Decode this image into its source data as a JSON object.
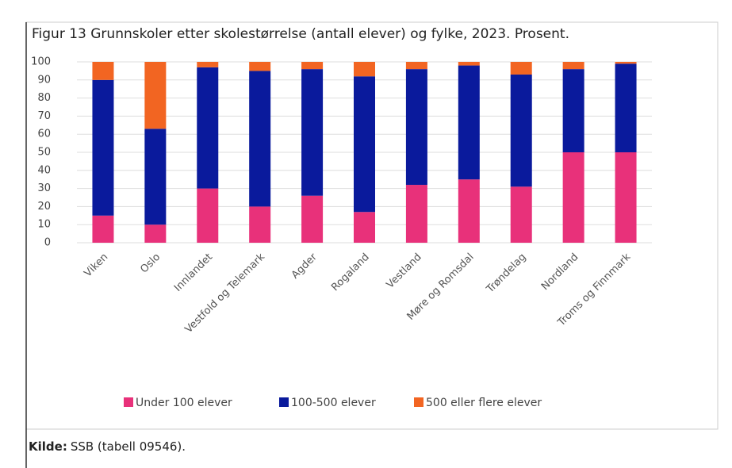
{
  "chart_data": {
    "type": "stacked_bar",
    "title": "Figur 13 Grunnskoler etter skolestørrelse (antall elever) og fylke, 2023. Prosent.",
    "categories": [
      "Viken",
      "Oslo",
      "Innlandet",
      "Vestfold og Telemark",
      "Agder",
      "Rogaland",
      "Vestland",
      "Møre og Romsdal",
      "Trøndelag",
      "Nordland",
      "Troms og Finnmark"
    ],
    "series": [
      {
        "name": "Under 100 elever",
        "color": "#e8317a",
        "values": [
          15,
          10,
          30,
          20,
          26,
          17,
          32,
          35,
          31,
          50,
          50
        ]
      },
      {
        "name": "100-500 elever",
        "color": "#0a1a9c",
        "values": [
          75,
          53,
          67,
          75,
          70,
          75,
          64,
          63,
          62,
          46,
          49
        ]
      },
      {
        "name": "500 eller flere elever",
        "color": "#f26522",
        "values": [
          10,
          37,
          3,
          5,
          4,
          8,
          4,
          2,
          7,
          4,
          1
        ]
      }
    ],
    "ylim": [
      0,
      100
    ],
    "yticks": [
      0,
      10,
      20,
      30,
      40,
      50,
      60,
      70,
      80,
      90,
      100
    ],
    "grid": true,
    "source_label": "Kilde:",
    "source": "SSB (tabell 09546)."
  }
}
